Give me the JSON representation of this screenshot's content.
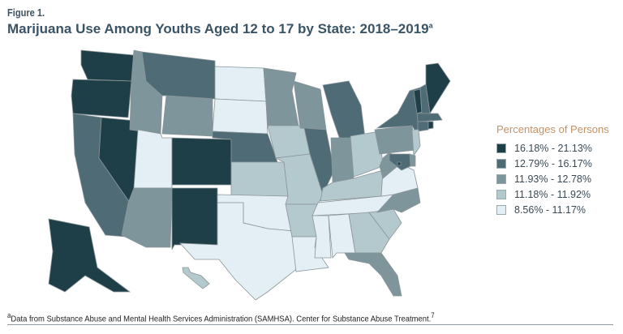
{
  "figure_label": "Figure 1.",
  "title": "Marijuana Use Among Youths Aged 12 to 17 by State: 2018–2019",
  "title_superscript": "a",
  "legend": {
    "title": "Percentages of Persons",
    "classes": [
      {
        "label": "16.18% - 21.13%",
        "color": "#1f3f48"
      },
      {
        "label": "12.79% - 16.17%",
        "color": "#4e6b76"
      },
      {
        "label": "11.93% - 12.78%",
        "color": "#7f959c"
      },
      {
        "label": "11.18% - 11.92%",
        "color": "#b3c9cd"
      },
      {
        "label": "8.56% - 11.17%",
        "color": "#e3eff5"
      }
    ]
  },
  "state_classes": {
    "WA": 0,
    "OR": 0,
    "NV": 0,
    "CO": 0,
    "NM": 0,
    "AK": 0,
    "VT": 0,
    "ME": 0,
    "RI": 0,
    "DC": 0,
    "MT": 1,
    "CA": 1,
    "NE": 1,
    "IL": 1,
    "MI": 1,
    "NY": 1,
    "NH": 1,
    "MA": 1,
    "CT": 1,
    "MD": 1,
    "ID": 2,
    "WY": 2,
    "MN": 2,
    "WI": 2,
    "IN": 2,
    "AZ": 2,
    "PA": 2,
    "WV": 2,
    "NC": 2,
    "FL": 2,
    "DE": 2,
    "IA": 3,
    "KS": 3,
    "MO": 3,
    "AR": 3,
    "OH": 3,
    "KY": 3,
    "NJ": 3,
    "GA": 3,
    "SC": 3,
    "HI": 3,
    "ND": 4,
    "SD": 4,
    "UT": 4,
    "OK": 4,
    "TX": 4,
    "LA": 4,
    "MS": 4,
    "AL": 4,
    "TN": 4,
    "VA": 4
  },
  "footnote_marker": "a",
  "footnote": "Data from Substance Abuse and Mental Health Services Administration (SAMHSA). Center for Substance Abuse Treatment.",
  "footnote_ref": "7"
}
